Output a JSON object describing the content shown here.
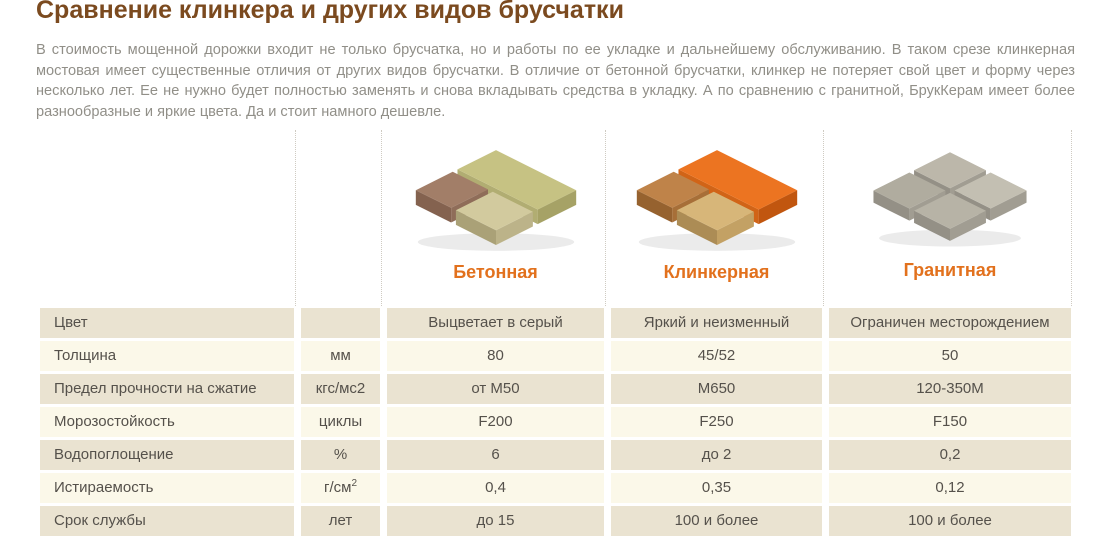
{
  "page": {
    "title": "Сравнение клинкера и других видов брусчатки",
    "intro": "В стоимость мощенной дорожки входит не только брусчатка, но и работы по ее укладке и дальнейшему обслуживанию. В таком срезе клинкерная мостовая имеет существенные отличия от других видов брусчатки. В отличие от бетонной брусчатки, клинкер не потеряет свой цвет и форму через несколько лет. Ее не нужно будет полностью заменять и снова вкладывать средства в укладку. А по сравнению с гранитной, БрукКерам имеет более разнообразные и яркие цвета. Да и стоит намного дешевле."
  },
  "colors": {
    "title_brown": "#7b4a1f",
    "body_text": "#918f88",
    "accent_orange": "#e2711d",
    "row_dark_bg": "#eae3d1",
    "row_light_bg": "#fbf8e9",
    "table_text": "#55514b",
    "divider_dotted": "#cfcbc2"
  },
  "products": [
    {
      "name": "Бетонная",
      "art": {
        "slab_top": "#c6c283",
        "slab_left": "#b1ad72",
        "slab_right": "#a6a266",
        "cube1_top": "#a27e68",
        "cube1_left": "#84624f",
        "cube1_right": "#8f6d59",
        "cube2_top": "#d2ca9e",
        "cube2_left": "#aaa177",
        "cube2_right": "#bcb389"
      }
    },
    {
      "name": "Клинкерная",
      "art": {
        "slab_top": "#ec7421",
        "slab_left": "#d16417",
        "slab_right": "#c1560f",
        "cube1_top": "#bf8349",
        "cube1_left": "#96622f",
        "cube1_right": "#a76f38",
        "cube2_top": "#d7b679",
        "cube2_left": "#ac8c55",
        "cube2_right": "#c3a164"
      }
    },
    {
      "name": "Гранитная",
      "art": {
        "a_top": "#bcb7aa",
        "b_top": "#c3bfb2",
        "c_top": "#b0ac9f",
        "d_top": "#b7b3a6",
        "left_face": "#949086",
        "right_face": "#a19d92"
      }
    }
  ],
  "table": {
    "rows": [
      {
        "label": "Цвет",
        "unit": "",
        "values": [
          "Выцветает в серый",
          "Яркий и неизменный",
          "Ограничен месторождением"
        ]
      },
      {
        "label": "Толщина",
        "unit": "мм",
        "values": [
          "80",
          "45/52",
          "50"
        ]
      },
      {
        "label": "Предел прочности на сжатие",
        "unit": "кгс/мс2",
        "values": [
          "от М50",
          "М650",
          "120-350М"
        ]
      },
      {
        "label": "Морозостойкость",
        "unit": "циклы",
        "values": [
          "F200",
          "F250",
          "F150"
        ]
      },
      {
        "label": "Водопоглощение",
        "unit": "%",
        "values": [
          "6",
          "до 2",
          "0,2"
        ]
      },
      {
        "label": "Истираемость",
        "unit": "г/см",
        "unit_sup": "2",
        "values": [
          "0,4",
          "0,35",
          "0,12"
        ]
      },
      {
        "label": "Срок службы",
        "unit": "лет",
        "values": [
          "до 15",
          "100 и более",
          "100 и более"
        ]
      }
    ]
  }
}
